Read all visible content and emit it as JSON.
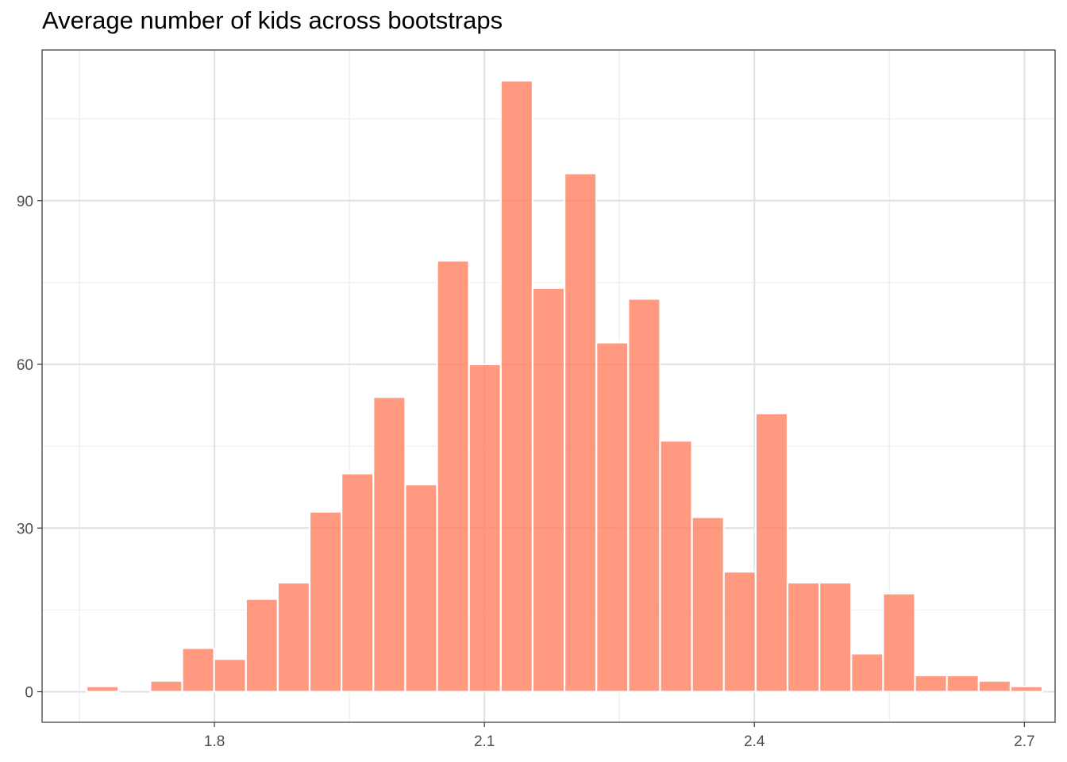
{
  "chart_data": {
    "type": "bar",
    "title": "Average number of kids across bootstraps",
    "xlabel": "",
    "ylabel": "",
    "bin_width": 0.03537,
    "bins": [
      {
        "x": 1.6403,
        "count": 0
      },
      {
        "x": 1.6757,
        "count": 1
      },
      {
        "x": 1.7111,
        "count": 0
      },
      {
        "x": 1.7465,
        "count": 2
      },
      {
        "x": 1.7819,
        "count": 8
      },
      {
        "x": 1.8173,
        "count": 6
      },
      {
        "x": 1.8527,
        "count": 17
      },
      {
        "x": 1.8881,
        "count": 20
      },
      {
        "x": 1.9235,
        "count": 33
      },
      {
        "x": 1.9589,
        "count": 40
      },
      {
        "x": 1.9943,
        "count": 54
      },
      {
        "x": 2.0297,
        "count": 38
      },
      {
        "x": 2.0651,
        "count": 79
      },
      {
        "x": 2.1005,
        "count": 60
      },
      {
        "x": 2.1359,
        "count": 112
      },
      {
        "x": 2.1713,
        "count": 74
      },
      {
        "x": 2.2067,
        "count": 95
      },
      {
        "x": 2.2421,
        "count": 64
      },
      {
        "x": 2.2775,
        "count": 72
      },
      {
        "x": 2.3129,
        "count": 46
      },
      {
        "x": 2.3483,
        "count": 32
      },
      {
        "x": 2.3837,
        "count": 22
      },
      {
        "x": 2.4191,
        "count": 51
      },
      {
        "x": 2.4545,
        "count": 20
      },
      {
        "x": 2.4899,
        "count": 20
      },
      {
        "x": 2.5253,
        "count": 7
      },
      {
        "x": 2.5607,
        "count": 18
      },
      {
        "x": 2.5961,
        "count": 3
      },
      {
        "x": 2.6315,
        "count": 3
      },
      {
        "x": 2.6669,
        "count": 2
      },
      {
        "x": 2.7023,
        "count": 1
      }
    ],
    "xlim": [
      1.6085,
      2.7341
    ],
    "ylim": [
      -5.6,
      117.6
    ],
    "x_ticks": [
      1.8,
      2.1,
      2.4,
      2.7
    ],
    "x_tick_labels": [
      "1.8",
      "2.1",
      "2.4",
      "2.7"
    ],
    "y_ticks": [
      0,
      30,
      60,
      90
    ],
    "y_tick_labels": [
      "0",
      "30",
      "60",
      "90"
    ],
    "x_minor": [
      1.65,
      1.95,
      2.25,
      2.55
    ],
    "y_minor": [
      15,
      45,
      75,
      105
    ],
    "grid": true,
    "legend": "none",
    "bar_color": "#ff7f5f",
    "bar_opacity": 0.8,
    "bar_outline": "#ffffff"
  }
}
